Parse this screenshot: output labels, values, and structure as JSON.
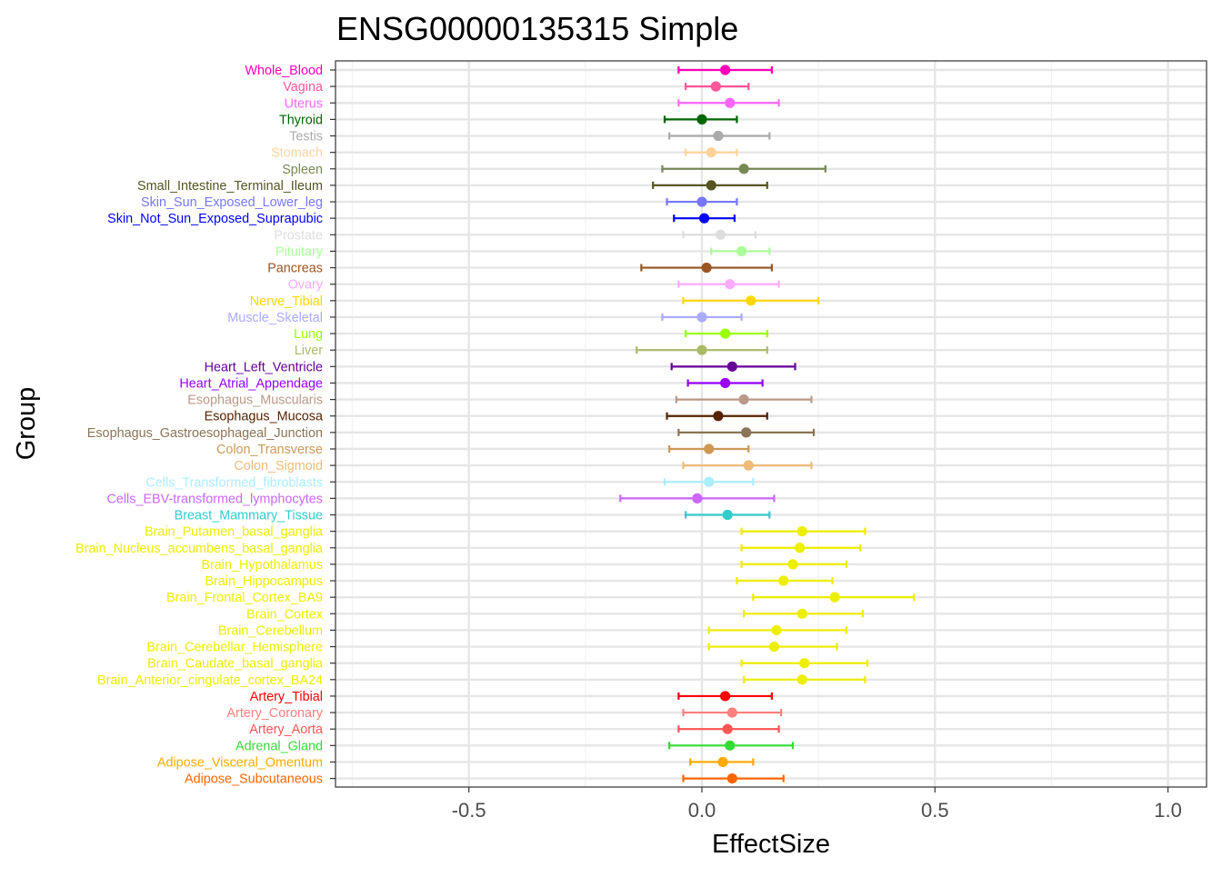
{
  "chart_data": {
    "type": "forest",
    "title": "ENSG00000135315 Simple",
    "xlabel": "EffectSize",
    "ylabel": "Group",
    "xlim": [
      -0.75,
      1.08
    ],
    "xticks": [
      -0.5,
      0.0,
      0.5,
      1.0
    ],
    "xtick_labels": [
      "-0.5",
      "0.0",
      "0.5",
      "1.0"
    ],
    "grid": true,
    "rows": [
      {
        "group": "Whole_Blood",
        "color": "#FF00BB",
        "effect": 0.05,
        "lower": -0.05,
        "upper": 0.15
      },
      {
        "group": "Vagina",
        "color": "#FF5599",
        "effect": 0.03,
        "lower": -0.035,
        "upper": 0.1
      },
      {
        "group": "Uterus",
        "color": "#FF66FF",
        "effect": 0.06,
        "lower": -0.05,
        "upper": 0.165
      },
      {
        "group": "Thyroid",
        "color": "#006600",
        "effect": 0.0,
        "lower": -0.08,
        "upper": 0.075
      },
      {
        "group": "Testis",
        "color": "#AAAAAA",
        "effect": 0.035,
        "lower": -0.07,
        "upper": 0.145
      },
      {
        "group": "Stomach",
        "color": "#FFD39B",
        "effect": 0.02,
        "lower": -0.035,
        "upper": 0.075
      },
      {
        "group": "Spleen",
        "color": "#778855",
        "effect": 0.09,
        "lower": -0.085,
        "upper": 0.265
      },
      {
        "group": "Small_Intestine_Terminal_Ileum",
        "color": "#555522",
        "effect": 0.02,
        "lower": -0.105,
        "upper": 0.14
      },
      {
        "group": "Skin_Sun_Exposed_Lower_leg",
        "color": "#7777FF",
        "effect": 0.0,
        "lower": -0.075,
        "upper": 0.075
      },
      {
        "group": "Skin_Not_Sun_Exposed_Suprapubic",
        "color": "#0000FF",
        "effect": 0.005,
        "lower": -0.06,
        "upper": 0.07
      },
      {
        "group": "Prostate",
        "color": "#DDDDDD",
        "effect": 0.04,
        "lower": -0.04,
        "upper": 0.115
      },
      {
        "group": "Pituitary",
        "color": "#AAFF99",
        "effect": 0.085,
        "lower": 0.02,
        "upper": 0.145
      },
      {
        "group": "Pancreas",
        "color": "#995522",
        "effect": 0.01,
        "lower": -0.13,
        "upper": 0.15
      },
      {
        "group": "Ovary",
        "color": "#FFAAFF",
        "effect": 0.06,
        "lower": -0.05,
        "upper": 0.165
      },
      {
        "group": "Nerve_Tibial",
        "color": "#FFD700",
        "effect": 0.105,
        "lower": -0.04,
        "upper": 0.25
      },
      {
        "group": "Muscle_Skeletal",
        "color": "#AAAAFF",
        "effect": 0.0,
        "lower": -0.085,
        "upper": 0.085
      },
      {
        "group": "Lung",
        "color": "#99FF00",
        "effect": 0.05,
        "lower": -0.035,
        "upper": 0.14
      },
      {
        "group": "Liver",
        "color": "#AABB66",
        "effect": 0.0,
        "lower": -0.14,
        "upper": 0.14
      },
      {
        "group": "Heart_Left_Ventricle",
        "color": "#660099",
        "effect": 0.065,
        "lower": -0.065,
        "upper": 0.2
      },
      {
        "group": "Heart_Atrial_Appendage",
        "color": "#9900FF",
        "effect": 0.05,
        "lower": -0.03,
        "upper": 0.13
      },
      {
        "group": "Esophagus_Muscularis",
        "color": "#BB9988",
        "effect": 0.09,
        "lower": -0.055,
        "upper": 0.235
      },
      {
        "group": "Esophagus_Mucosa",
        "color": "#552200",
        "effect": 0.035,
        "lower": -0.075,
        "upper": 0.14
      },
      {
        "group": "Esophagus_Gastroesophageal_Junction",
        "color": "#8B7355",
        "effect": 0.095,
        "lower": -0.05,
        "upper": 0.24
      },
      {
        "group": "Colon_Transverse",
        "color": "#CC9955",
        "effect": 0.015,
        "lower": -0.07,
        "upper": 0.1
      },
      {
        "group": "Colon_Sigmoid",
        "color": "#EEBB77",
        "effect": 0.1,
        "lower": -0.04,
        "upper": 0.235
      },
      {
        "group": "Cells_Transformed_fibroblasts",
        "color": "#AAEEFF",
        "effect": 0.015,
        "lower": -0.08,
        "upper": 0.11
      },
      {
        "group": "Cells_EBV-transformed_lymphocytes",
        "color": "#CC66FF",
        "effect": -0.01,
        "lower": -0.175,
        "upper": 0.155
      },
      {
        "group": "Breast_Mammary_Tissue",
        "color": "#33CCCC",
        "effect": 0.055,
        "lower": -0.035,
        "upper": 0.145
      },
      {
        "group": "Brain_Putamen_basal_ganglia",
        "color": "#EEEE00",
        "effect": 0.215,
        "lower": 0.085,
        "upper": 0.35
      },
      {
        "group": "Brain_Nucleus_accumbens_basal_ganglia",
        "color": "#EEEE00",
        "effect": 0.21,
        "lower": 0.085,
        "upper": 0.34
      },
      {
        "group": "Brain_Hypothalamus",
        "color": "#EEEE00",
        "effect": 0.195,
        "lower": 0.085,
        "upper": 0.31
      },
      {
        "group": "Brain_Hippocampus",
        "color": "#EEEE00",
        "effect": 0.175,
        "lower": 0.075,
        "upper": 0.28
      },
      {
        "group": "Brain_Frontal_Cortex_BA9",
        "color": "#EEEE00",
        "effect": 0.285,
        "lower": 0.11,
        "upper": 0.455
      },
      {
        "group": "Brain_Cortex",
        "color": "#EEEE00",
        "effect": 0.215,
        "lower": 0.09,
        "upper": 0.345
      },
      {
        "group": "Brain_Cerebellum",
        "color": "#EEEE00",
        "effect": 0.16,
        "lower": 0.015,
        "upper": 0.31
      },
      {
        "group": "Brain_Cerebellar_Hemisphere",
        "color": "#EEEE00",
        "effect": 0.155,
        "lower": 0.015,
        "upper": 0.29
      },
      {
        "group": "Brain_Caudate_basal_ganglia",
        "color": "#EEEE00",
        "effect": 0.22,
        "lower": 0.085,
        "upper": 0.355
      },
      {
        "group": "Brain_Anterior_cingulate_cortex_BA24",
        "color": "#EEEE00",
        "effect": 0.215,
        "lower": 0.09,
        "upper": 0.35
      },
      {
        "group": "Artery_Tibial",
        "color": "#FF0000",
        "effect": 0.05,
        "lower": -0.05,
        "upper": 0.15
      },
      {
        "group": "Artery_Coronary",
        "color": "#FF7F7F",
        "effect": 0.065,
        "lower": -0.04,
        "upper": 0.17
      },
      {
        "group": "Artery_Aorta",
        "color": "#FF5555",
        "effect": 0.055,
        "lower": -0.05,
        "upper": 0.165
      },
      {
        "group": "Adrenal_Gland",
        "color": "#33DD33",
        "effect": 0.06,
        "lower": -0.07,
        "upper": 0.195
      },
      {
        "group": "Adipose_Visceral_Omentum",
        "color": "#FFAA00",
        "effect": 0.045,
        "lower": -0.025,
        "upper": 0.11
      },
      {
        "group": "Adipose_Subcutaneous",
        "color": "#FF6600",
        "effect": 0.065,
        "lower": -0.04,
        "upper": 0.175
      }
    ]
  }
}
